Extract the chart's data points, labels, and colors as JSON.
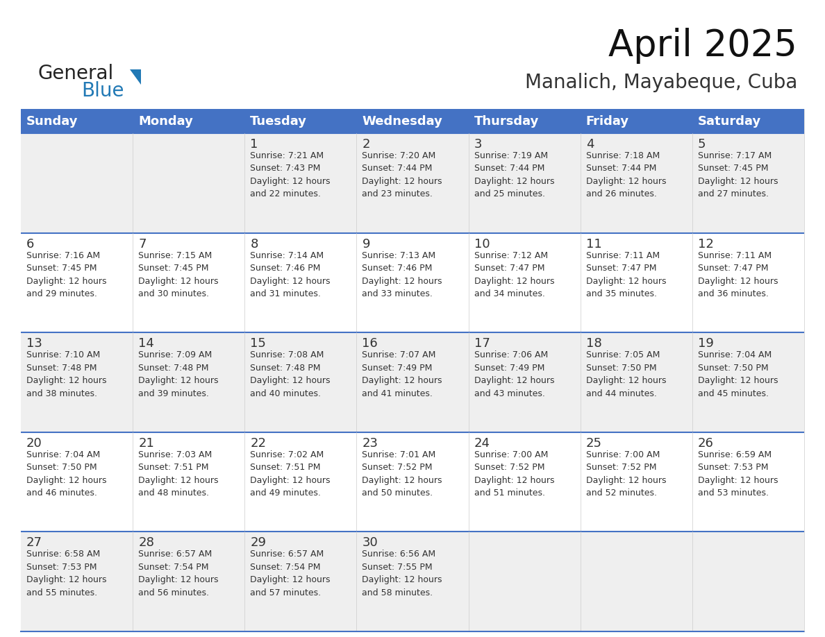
{
  "title": "April 2025",
  "subtitle": "Manalich, Mayabeque, Cuba",
  "header_bg": "#4472C4",
  "header_text_color": "#FFFFFF",
  "header_font_size": 13,
  "day_names": [
    "Sunday",
    "Monday",
    "Tuesday",
    "Wednesday",
    "Thursday",
    "Friday",
    "Saturday"
  ],
  "title_fontsize": 38,
  "subtitle_fontsize": 20,
  "cell_text_color": "#333333",
  "day_number_fontsize": 13,
  "cell_info_fontsize": 9,
  "row0_bg": "#EFEFEF",
  "row1_bg": "#FFFFFF",
  "logo_general_color": "#222222",
  "logo_blue_color": "#2179B5",
  "border_color": "#4472C4",
  "grid_color": "#CCCCCC",
  "week_data": [
    [
      {
        "day": null,
        "info": ""
      },
      {
        "day": null,
        "info": ""
      },
      {
        "day": 1,
        "info": "Sunrise: 7:21 AM\nSunset: 7:43 PM\nDaylight: 12 hours\nand 22 minutes."
      },
      {
        "day": 2,
        "info": "Sunrise: 7:20 AM\nSunset: 7:44 PM\nDaylight: 12 hours\nand 23 minutes."
      },
      {
        "day": 3,
        "info": "Sunrise: 7:19 AM\nSunset: 7:44 PM\nDaylight: 12 hours\nand 25 minutes."
      },
      {
        "day": 4,
        "info": "Sunrise: 7:18 AM\nSunset: 7:44 PM\nDaylight: 12 hours\nand 26 minutes."
      },
      {
        "day": 5,
        "info": "Sunrise: 7:17 AM\nSunset: 7:45 PM\nDaylight: 12 hours\nand 27 minutes."
      }
    ],
    [
      {
        "day": 6,
        "info": "Sunrise: 7:16 AM\nSunset: 7:45 PM\nDaylight: 12 hours\nand 29 minutes."
      },
      {
        "day": 7,
        "info": "Sunrise: 7:15 AM\nSunset: 7:45 PM\nDaylight: 12 hours\nand 30 minutes."
      },
      {
        "day": 8,
        "info": "Sunrise: 7:14 AM\nSunset: 7:46 PM\nDaylight: 12 hours\nand 31 minutes."
      },
      {
        "day": 9,
        "info": "Sunrise: 7:13 AM\nSunset: 7:46 PM\nDaylight: 12 hours\nand 33 minutes."
      },
      {
        "day": 10,
        "info": "Sunrise: 7:12 AM\nSunset: 7:47 PM\nDaylight: 12 hours\nand 34 minutes."
      },
      {
        "day": 11,
        "info": "Sunrise: 7:11 AM\nSunset: 7:47 PM\nDaylight: 12 hours\nand 35 minutes."
      },
      {
        "day": 12,
        "info": "Sunrise: 7:11 AM\nSunset: 7:47 PM\nDaylight: 12 hours\nand 36 minutes."
      }
    ],
    [
      {
        "day": 13,
        "info": "Sunrise: 7:10 AM\nSunset: 7:48 PM\nDaylight: 12 hours\nand 38 minutes."
      },
      {
        "day": 14,
        "info": "Sunrise: 7:09 AM\nSunset: 7:48 PM\nDaylight: 12 hours\nand 39 minutes."
      },
      {
        "day": 15,
        "info": "Sunrise: 7:08 AM\nSunset: 7:48 PM\nDaylight: 12 hours\nand 40 minutes."
      },
      {
        "day": 16,
        "info": "Sunrise: 7:07 AM\nSunset: 7:49 PM\nDaylight: 12 hours\nand 41 minutes."
      },
      {
        "day": 17,
        "info": "Sunrise: 7:06 AM\nSunset: 7:49 PM\nDaylight: 12 hours\nand 43 minutes."
      },
      {
        "day": 18,
        "info": "Sunrise: 7:05 AM\nSunset: 7:50 PM\nDaylight: 12 hours\nand 44 minutes."
      },
      {
        "day": 19,
        "info": "Sunrise: 7:04 AM\nSunset: 7:50 PM\nDaylight: 12 hours\nand 45 minutes."
      }
    ],
    [
      {
        "day": 20,
        "info": "Sunrise: 7:04 AM\nSunset: 7:50 PM\nDaylight: 12 hours\nand 46 minutes."
      },
      {
        "day": 21,
        "info": "Sunrise: 7:03 AM\nSunset: 7:51 PM\nDaylight: 12 hours\nand 48 minutes."
      },
      {
        "day": 22,
        "info": "Sunrise: 7:02 AM\nSunset: 7:51 PM\nDaylight: 12 hours\nand 49 minutes."
      },
      {
        "day": 23,
        "info": "Sunrise: 7:01 AM\nSunset: 7:52 PM\nDaylight: 12 hours\nand 50 minutes."
      },
      {
        "day": 24,
        "info": "Sunrise: 7:00 AM\nSunset: 7:52 PM\nDaylight: 12 hours\nand 51 minutes."
      },
      {
        "day": 25,
        "info": "Sunrise: 7:00 AM\nSunset: 7:52 PM\nDaylight: 12 hours\nand 52 minutes."
      },
      {
        "day": 26,
        "info": "Sunrise: 6:59 AM\nSunset: 7:53 PM\nDaylight: 12 hours\nand 53 minutes."
      }
    ],
    [
      {
        "day": 27,
        "info": "Sunrise: 6:58 AM\nSunset: 7:53 PM\nDaylight: 12 hours\nand 55 minutes."
      },
      {
        "day": 28,
        "info": "Sunrise: 6:57 AM\nSunset: 7:54 PM\nDaylight: 12 hours\nand 56 minutes."
      },
      {
        "day": 29,
        "info": "Sunrise: 6:57 AM\nSunset: 7:54 PM\nDaylight: 12 hours\nand 57 minutes."
      },
      {
        "day": 30,
        "info": "Sunrise: 6:56 AM\nSunset: 7:55 PM\nDaylight: 12 hours\nand 58 minutes."
      },
      {
        "day": null,
        "info": ""
      },
      {
        "day": null,
        "info": ""
      },
      {
        "day": null,
        "info": ""
      }
    ]
  ]
}
